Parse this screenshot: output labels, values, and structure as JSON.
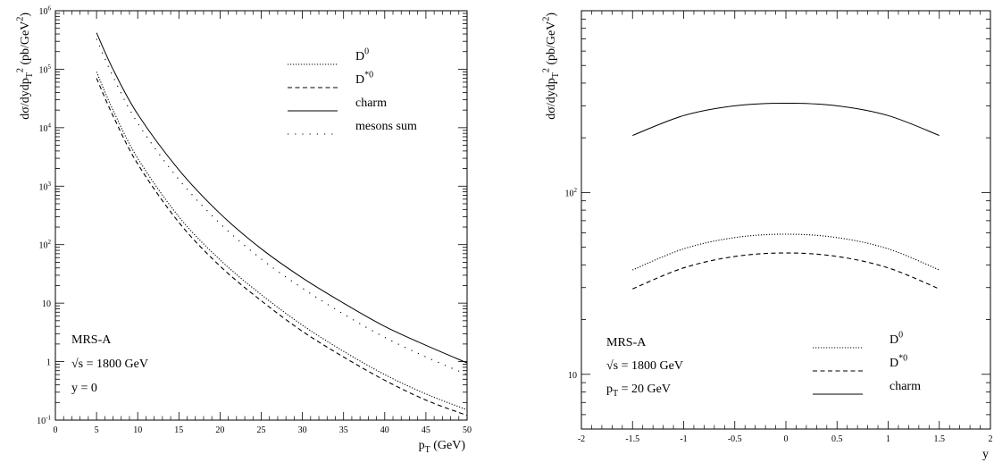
{
  "chart_data": [
    {
      "type": "line",
      "xlabel": "p_T (GeV)",
      "ylabel": "dσ/dydp_T^2 (pb/GeV^2)",
      "xlim": [
        0,
        50
      ],
      "ylim": [
        0.1,
        1000000
      ],
      "y_scale": "log",
      "x_ticks": [
        0,
        5,
        10,
        15,
        20,
        25,
        30,
        35,
        40,
        45,
        50
      ],
      "y_ticks": [
        {
          "value": 0.1,
          "label": "10^-1"
        },
        {
          "value": 1,
          "label": "1"
        },
        {
          "value": 10,
          "label": "10"
        },
        {
          "value": 100,
          "label": "10^2"
        },
        {
          "value": 1000,
          "label": "10^3"
        },
        {
          "value": 10000,
          "label": "10^4"
        },
        {
          "value": 100000,
          "label": "10^5"
        },
        {
          "value": 1000000,
          "label": "10^6"
        }
      ],
      "legend_position": "top-right",
      "annotations": [
        "MRS-A",
        "√s = 1800  GeV",
        "y = 0"
      ],
      "series": [
        {
          "name": "D^0",
          "style": "dotted",
          "x": [
            5,
            7,
            10,
            15,
            20,
            25,
            30,
            35,
            40,
            45,
            50
          ],
          "values": [
            90000,
            20000,
            3000,
            300,
            55,
            14,
            4.2,
            1.5,
            0.6,
            0.28,
            0.15
          ]
        },
        {
          "name": "D^*0",
          "style": "dashed",
          "x": [
            5,
            7,
            10,
            15,
            20,
            25,
            30,
            35,
            40,
            45,
            50
          ],
          "values": [
            70000,
            16000,
            2400,
            240,
            43,
            11,
            3.3,
            1.2,
            0.48,
            0.22,
            0.12
          ]
        },
        {
          "name": "charm",
          "style": "solid",
          "x": [
            5,
            7,
            10,
            15,
            20,
            25,
            30,
            35,
            40,
            45,
            50
          ],
          "values": [
            420000,
            100000,
            17000,
            1900,
            340,
            85,
            27,
            10,
            4,
            1.9,
            0.95
          ]
        },
        {
          "name": "mesons sum",
          "style": "sparse-dotted",
          "x": [
            5,
            7,
            10,
            15,
            20,
            25,
            30,
            35,
            40,
            45,
            50
          ],
          "values": [
            330000,
            75000,
            12000,
            1300,
            230,
            57,
            18,
            6.5,
            2.6,
            1.2,
            0.6
          ]
        }
      ]
    },
    {
      "type": "line",
      "xlabel": "y",
      "ylabel": "dσ/dydp_T^2 (pb/GeV^2)",
      "xlim": [
        -2,
        2
      ],
      "ylim": [
        5,
        1000
      ],
      "y_scale": "log",
      "x_ticks": [
        -2,
        -1.5,
        -1,
        -0.5,
        0,
        0.5,
        1,
        1.5,
        2
      ],
      "y_ticks": [
        {
          "value": 10,
          "label": "10"
        },
        {
          "value": 100,
          "label": "10^2"
        }
      ],
      "legend_position": "bottom-right",
      "annotations": [
        "MRS-A",
        "√s = 1800  GeV",
        "p_T = 20 GeV"
      ],
      "series": [
        {
          "name": "D^0",
          "style": "dotted",
          "x": [
            -1.5,
            -1,
            -0.5,
            0,
            0.5,
            1,
            1.5
          ],
          "values": [
            37.5,
            49,
            56.5,
            59,
            56.5,
            49,
            37.5
          ]
        },
        {
          "name": "D^*0",
          "style": "dashed",
          "x": [
            -1.5,
            -1,
            -0.5,
            0,
            0.5,
            1,
            1.5
          ],
          "values": [
            29.5,
            38.5,
            44.5,
            46.5,
            44.5,
            38.5,
            29.5
          ]
        },
        {
          "name": "charm",
          "style": "solid",
          "x": [
            -1.5,
            -1,
            -0.5,
            0,
            0.5,
            1,
            1.5
          ],
          "values": [
            206,
            265,
            300,
            310,
            300,
            265,
            206
          ]
        }
      ]
    }
  ]
}
